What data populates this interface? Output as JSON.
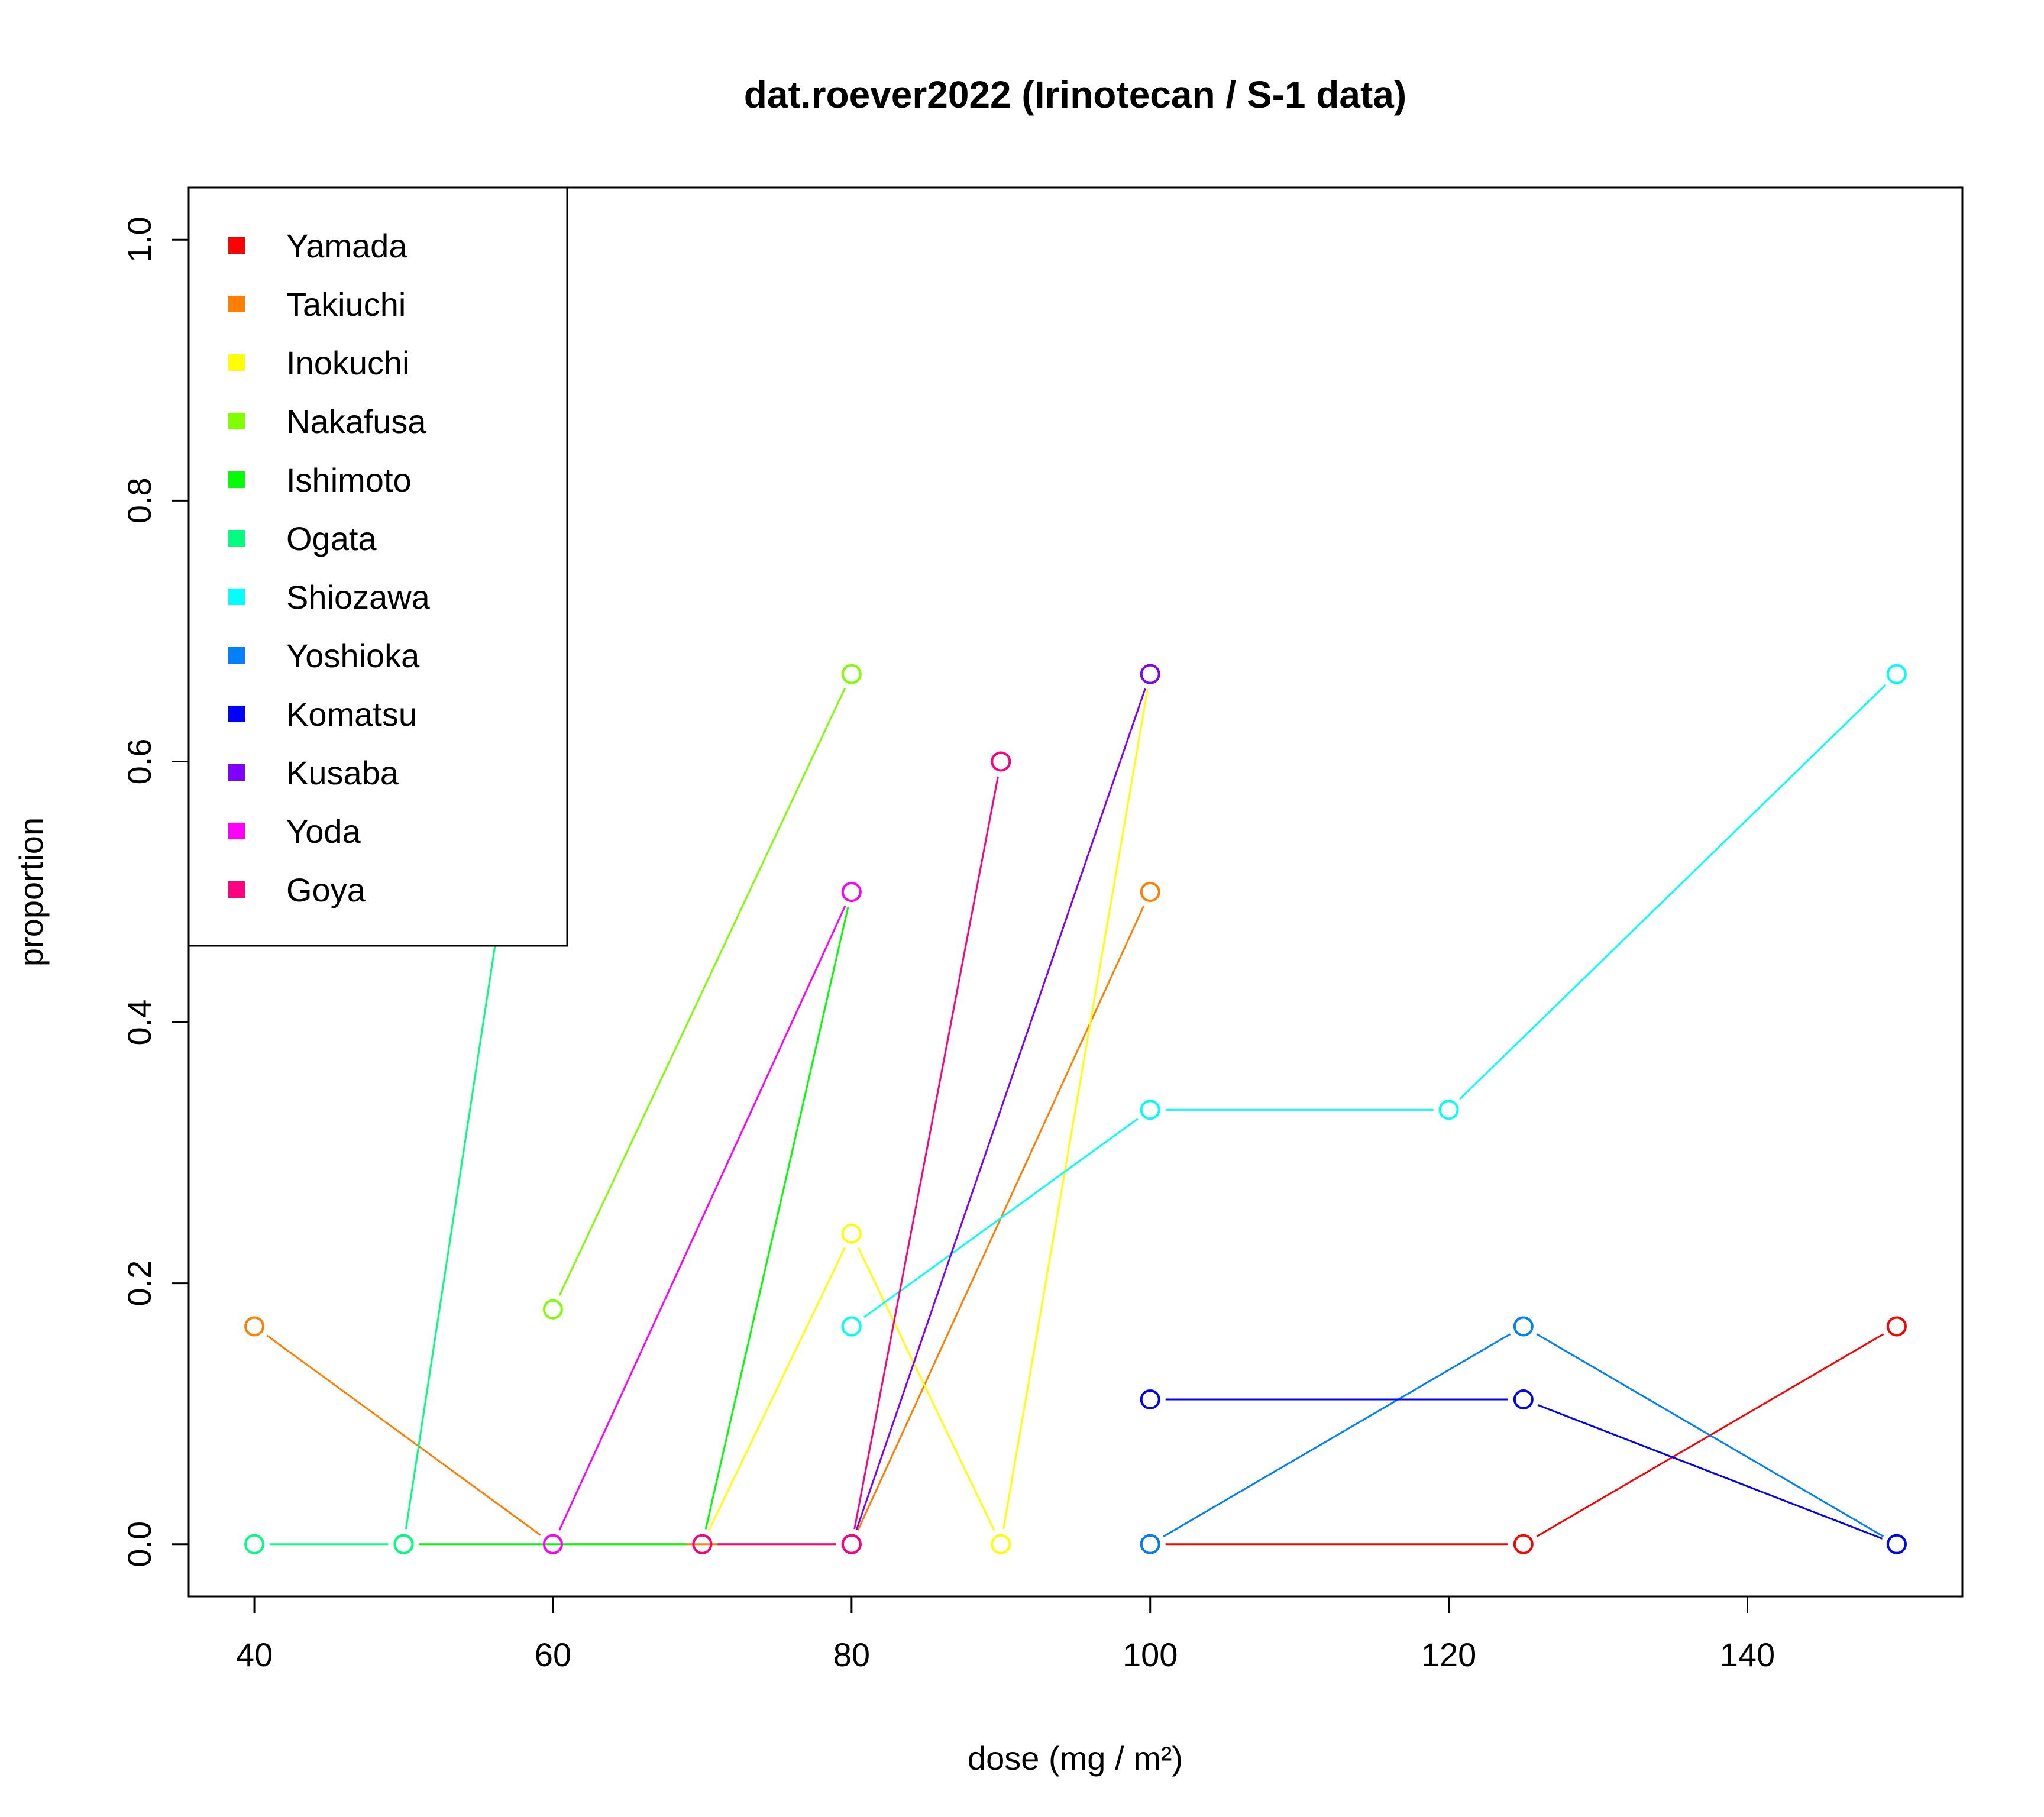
{
  "chart_data": {
    "type": "line",
    "title": "dat.roever2022 (Irinotecan / S-1 data)",
    "xlabel": "dose (mg / m²)",
    "ylabel": "proportion",
    "xlim": [
      35.6,
      154.4
    ],
    "ylim": [
      -0.04,
      1.04
    ],
    "xticks": [
      40,
      60,
      80,
      100,
      120,
      140
    ],
    "yticks": [
      0.0,
      0.2,
      0.4,
      0.6,
      0.8,
      1.0
    ],
    "xtick_labels": [
      "40",
      "60",
      "80",
      "100",
      "120",
      "140"
    ],
    "ytick_labels": [
      "0.0",
      "0.2",
      "0.4",
      "0.6",
      "0.8",
      "1.0"
    ],
    "grid": false,
    "legend_position": "top-left",
    "series": [
      {
        "name": "Yamada",
        "color": "#FF0000",
        "points": [
          [
            100,
            0.0
          ],
          [
            125,
            0.0
          ],
          [
            150,
            0.167
          ]
        ]
      },
      {
        "name": "Takiuchi",
        "color": "#FF8000",
        "points": [
          [
            40,
            0.167
          ],
          [
            60,
            0.0
          ],
          [
            80,
            0.0
          ],
          [
            100,
            0.5
          ]
        ]
      },
      {
        "name": "Inokuchi",
        "color": "#FFFF00",
        "points": [
          [
            70,
            0.0
          ],
          [
            80,
            0.238
          ],
          [
            90,
            0.0
          ],
          [
            100,
            0.667
          ]
        ]
      },
      {
        "name": "Nakafusa",
        "color": "#80FF00",
        "points": [
          [
            60,
            0.18
          ],
          [
            80,
            0.667
          ]
        ]
      },
      {
        "name": "Ishimoto",
        "color": "#00FF00",
        "points": [
          [
            50,
            0.0
          ],
          [
            70,
            0.0
          ],
          [
            80,
            0.5
          ]
        ]
      },
      {
        "name": "Ogata",
        "color": "#00FF80",
        "points": [
          [
            40,
            0.0
          ],
          [
            50,
            0.0
          ],
          [
            60,
            0.75
          ]
        ]
      },
      {
        "name": "Shiozawa",
        "color": "#00FFFF",
        "points": [
          [
            80,
            0.167
          ],
          [
            100,
            0.333
          ],
          [
            120,
            0.333
          ],
          [
            150,
            0.667
          ]
        ]
      },
      {
        "name": "Yoshioka",
        "color": "#0080FF",
        "points": [
          [
            100,
            0.0
          ],
          [
            125,
            0.167
          ],
          [
            150,
            0.0
          ]
        ]
      },
      {
        "name": "Komatsu",
        "color": "#0000FF",
        "points": [
          [
            100,
            0.111
          ],
          [
            125,
            0.111
          ],
          [
            150,
            0.0
          ]
        ]
      },
      {
        "name": "Kusaba",
        "color": "#8000FF",
        "points": [
          [
            80,
            0.0
          ],
          [
            100,
            0.667
          ]
        ]
      },
      {
        "name": "Yoda",
        "color": "#FF00FF",
        "points": [
          [
            60,
            0.0
          ],
          [
            80,
            0.5
          ]
        ]
      },
      {
        "name": "Goya",
        "color": "#FF0080",
        "points": [
          [
            70,
            0.0
          ],
          [
            80,
            0.0
          ],
          [
            90,
            0.6
          ]
        ]
      }
    ]
  }
}
